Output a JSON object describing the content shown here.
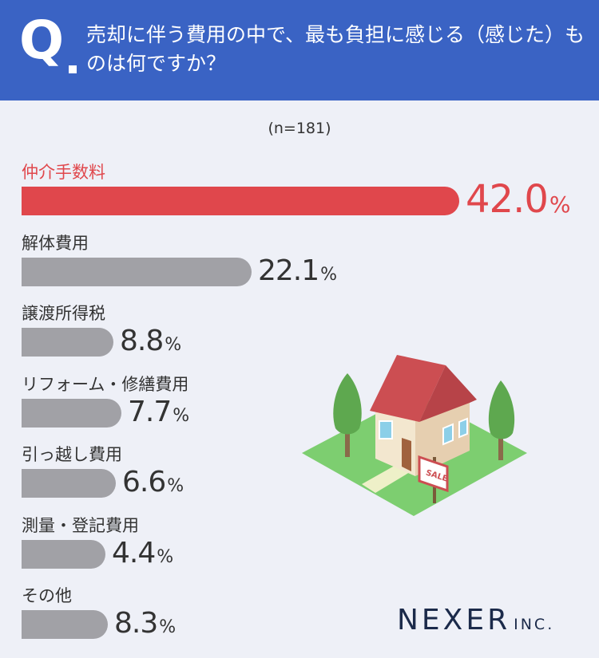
{
  "header": {
    "q_mark": "Q",
    "question": "売却に伴う費用の中で、最も負担に感じる（感じた）ものは何ですか？"
  },
  "sample_size": "(n=181)",
  "chart_data": {
    "type": "bar",
    "orientation": "horizontal",
    "title": "売却に伴う費用の中で、最も負担に感じる（感じた）ものは何ですか？",
    "categories": [
      "仲介手数料",
      "解体費用",
      "譲渡所得税",
      "リフォーム・修繕費用",
      "引っ越し費用",
      "測量・登記費用",
      "その他"
    ],
    "values": [
      42.0,
      22.1,
      8.8,
      7.7,
      6.6,
      4.4,
      8.3
    ],
    "value_labels": [
      "42.0",
      "22.1",
      "8.8",
      "7.7",
      "6.6",
      "4.4",
      "8.3"
    ],
    "unit": "%",
    "highlight_index": 0,
    "colors": {
      "highlight": "#e0474c",
      "default": "#a1a1a6"
    },
    "xlim": [
      0,
      42.0
    ],
    "grid": false,
    "legend": "none"
  },
  "illustration": {
    "sign_text": "SALE",
    "colors": {
      "grass": "#7dce70",
      "roof": "#cc4e52",
      "wall": "#f3e7cf",
      "tree": "#5ea84f"
    }
  },
  "logo": {
    "main": "NEXER",
    "sub": "INC."
  }
}
